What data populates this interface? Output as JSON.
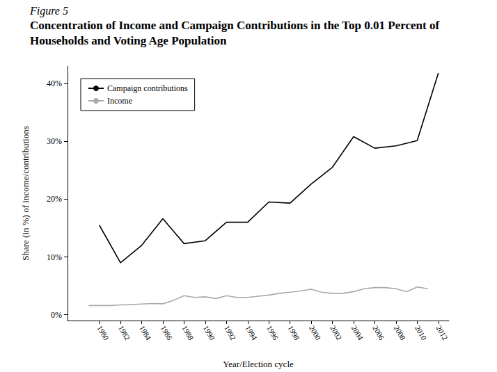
{
  "chart_data": {
    "type": "line",
    "figure_label": "Figure 5",
    "title": "Concentration of Income and Campaign Contributions in the Top 0.01 Percent of Households and Voting Age Population",
    "x_label": "Year/Election cycle",
    "y_label": "Share (in %) of income/contributions",
    "xlim": [
      1977,
      2013
    ],
    "xticks": [
      1980,
      1982,
      1984,
      1986,
      1988,
      1990,
      1992,
      1994,
      1996,
      1998,
      2000,
      2002,
      2004,
      2006,
      2008,
      2010,
      2012
    ],
    "ylim": [
      -1,
      43
    ],
    "yticks": [
      {
        "value": 0,
        "label": "0%"
      },
      {
        "value": 10,
        "label": "10%"
      },
      {
        "value": 20,
        "label": "20%"
      },
      {
        "value": 30,
        "label": "30%"
      },
      {
        "value": 40,
        "label": "40%"
      }
    ],
    "grid": false,
    "legend": "upper left",
    "series": [
      {
        "name": "Campaign contributions",
        "color": "#000000",
        "x": [
          1980,
          1982,
          1984,
          1986,
          1988,
          1990,
          1992,
          1994,
          1996,
          1998,
          2000,
          2002,
          2004,
          2006,
          2008,
          2010,
          2012
        ],
        "values": [
          15.5,
          9,
          12,
          16.6,
          12.3,
          12.8,
          16,
          16,
          19.5,
          19.3,
          22.6,
          25.5,
          30.8,
          28.8,
          29.2,
          30.1,
          41.8
        ]
      },
      {
        "name": "Income",
        "color": "#aaaaaa",
        "x": [
          1979,
          1980,
          1981,
          1982,
          1983,
          1984,
          1985,
          1986,
          1987,
          1988,
          1989,
          1990,
          1991,
          1992,
          1993,
          1994,
          1995,
          1996,
          1997,
          1998,
          1999,
          2000,
          2001,
          2002,
          2003,
          2004,
          2005,
          2006,
          2007,
          2008,
          2009,
          2010,
          2011
        ],
        "values": [
          1.6,
          1.6,
          1.6,
          1.7,
          1.75,
          1.85,
          1.95,
          1.9,
          2.5,
          3.3,
          3.0,
          3.1,
          2.8,
          3.3,
          3.0,
          3.0,
          3.2,
          3.4,
          3.7,
          3.9,
          4.1,
          4.4,
          3.9,
          3.7,
          3.7,
          4.0,
          4.5,
          4.7,
          4.7,
          4.5,
          4.0,
          4.8,
          4.5
        ]
      }
    ]
  }
}
